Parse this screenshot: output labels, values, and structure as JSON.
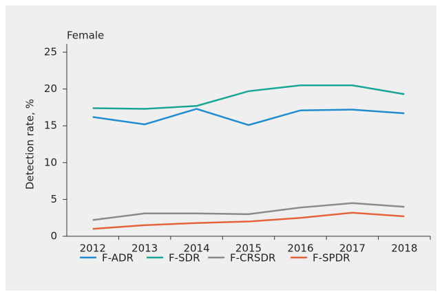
{
  "chart_data": {
    "type": "line",
    "title": "Female",
    "y_label": "Detection rate, %",
    "categories": [
      "2012",
      "2013",
      "2014",
      "2015",
      "2016",
      "2017",
      "2018"
    ],
    "series": [
      {
        "name": "F-ADR",
        "color": "#1f8ccf",
        "values": [
          16.2,
          15.2,
          17.3,
          15.1,
          17.1,
          17.2,
          16.7
        ]
      },
      {
        "name": "F-SDR",
        "color": "#17a596",
        "values": [
          17.4,
          17.3,
          17.7,
          19.7,
          20.5,
          20.5,
          19.3
        ]
      },
      {
        "name": "F-CRSDR",
        "color": "#8a8a8a",
        "values": [
          2.2,
          3.1,
          3.1,
          3.0,
          3.9,
          4.5,
          4.0
        ]
      },
      {
        "name": "F-SPDR",
        "color": "#e6633a",
        "values": [
          1.0,
          1.5,
          1.8,
          2.0,
          2.5,
          3.2,
          2.7
        ]
      }
    ],
    "ylim": [
      0,
      25
    ],
    "yticks": [
      0,
      5,
      10,
      15,
      20,
      25
    ],
    "grid": false,
    "legend": "bottom"
  }
}
